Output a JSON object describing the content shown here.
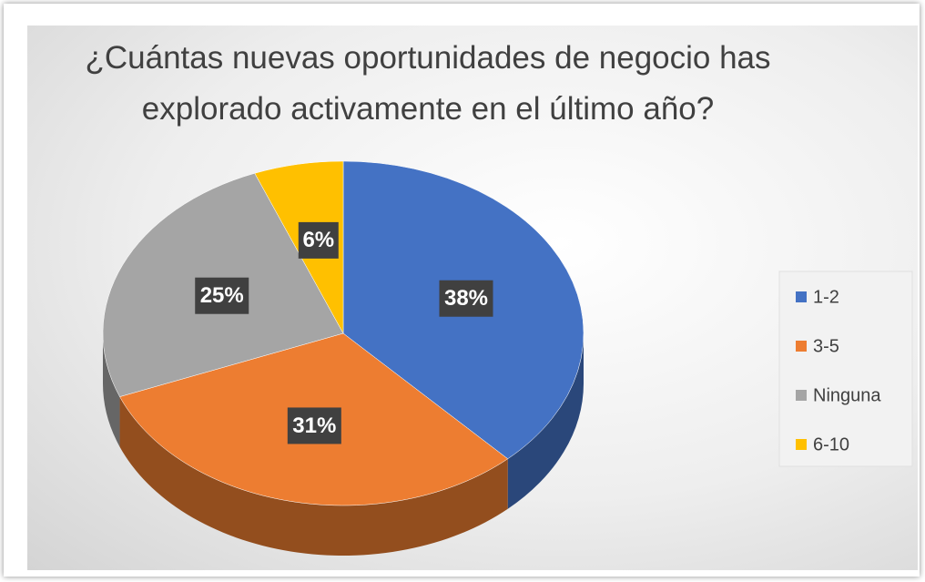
{
  "chart_data": {
    "type": "pie",
    "title": "¿Cuántas nuevas oportunidades de negocio has explorado activamente en el último año?",
    "categories": [
      "1-2",
      "3-5",
      "Ninguna",
      "6-10"
    ],
    "values": [
      38,
      31,
      25,
      6
    ],
    "value_labels": [
      "38%",
      "31%",
      "25%",
      "6%"
    ],
    "colors": [
      "#4472c4",
      "#ed7d31",
      "#a5a5a5",
      "#ffc000"
    ],
    "legend": "right"
  }
}
